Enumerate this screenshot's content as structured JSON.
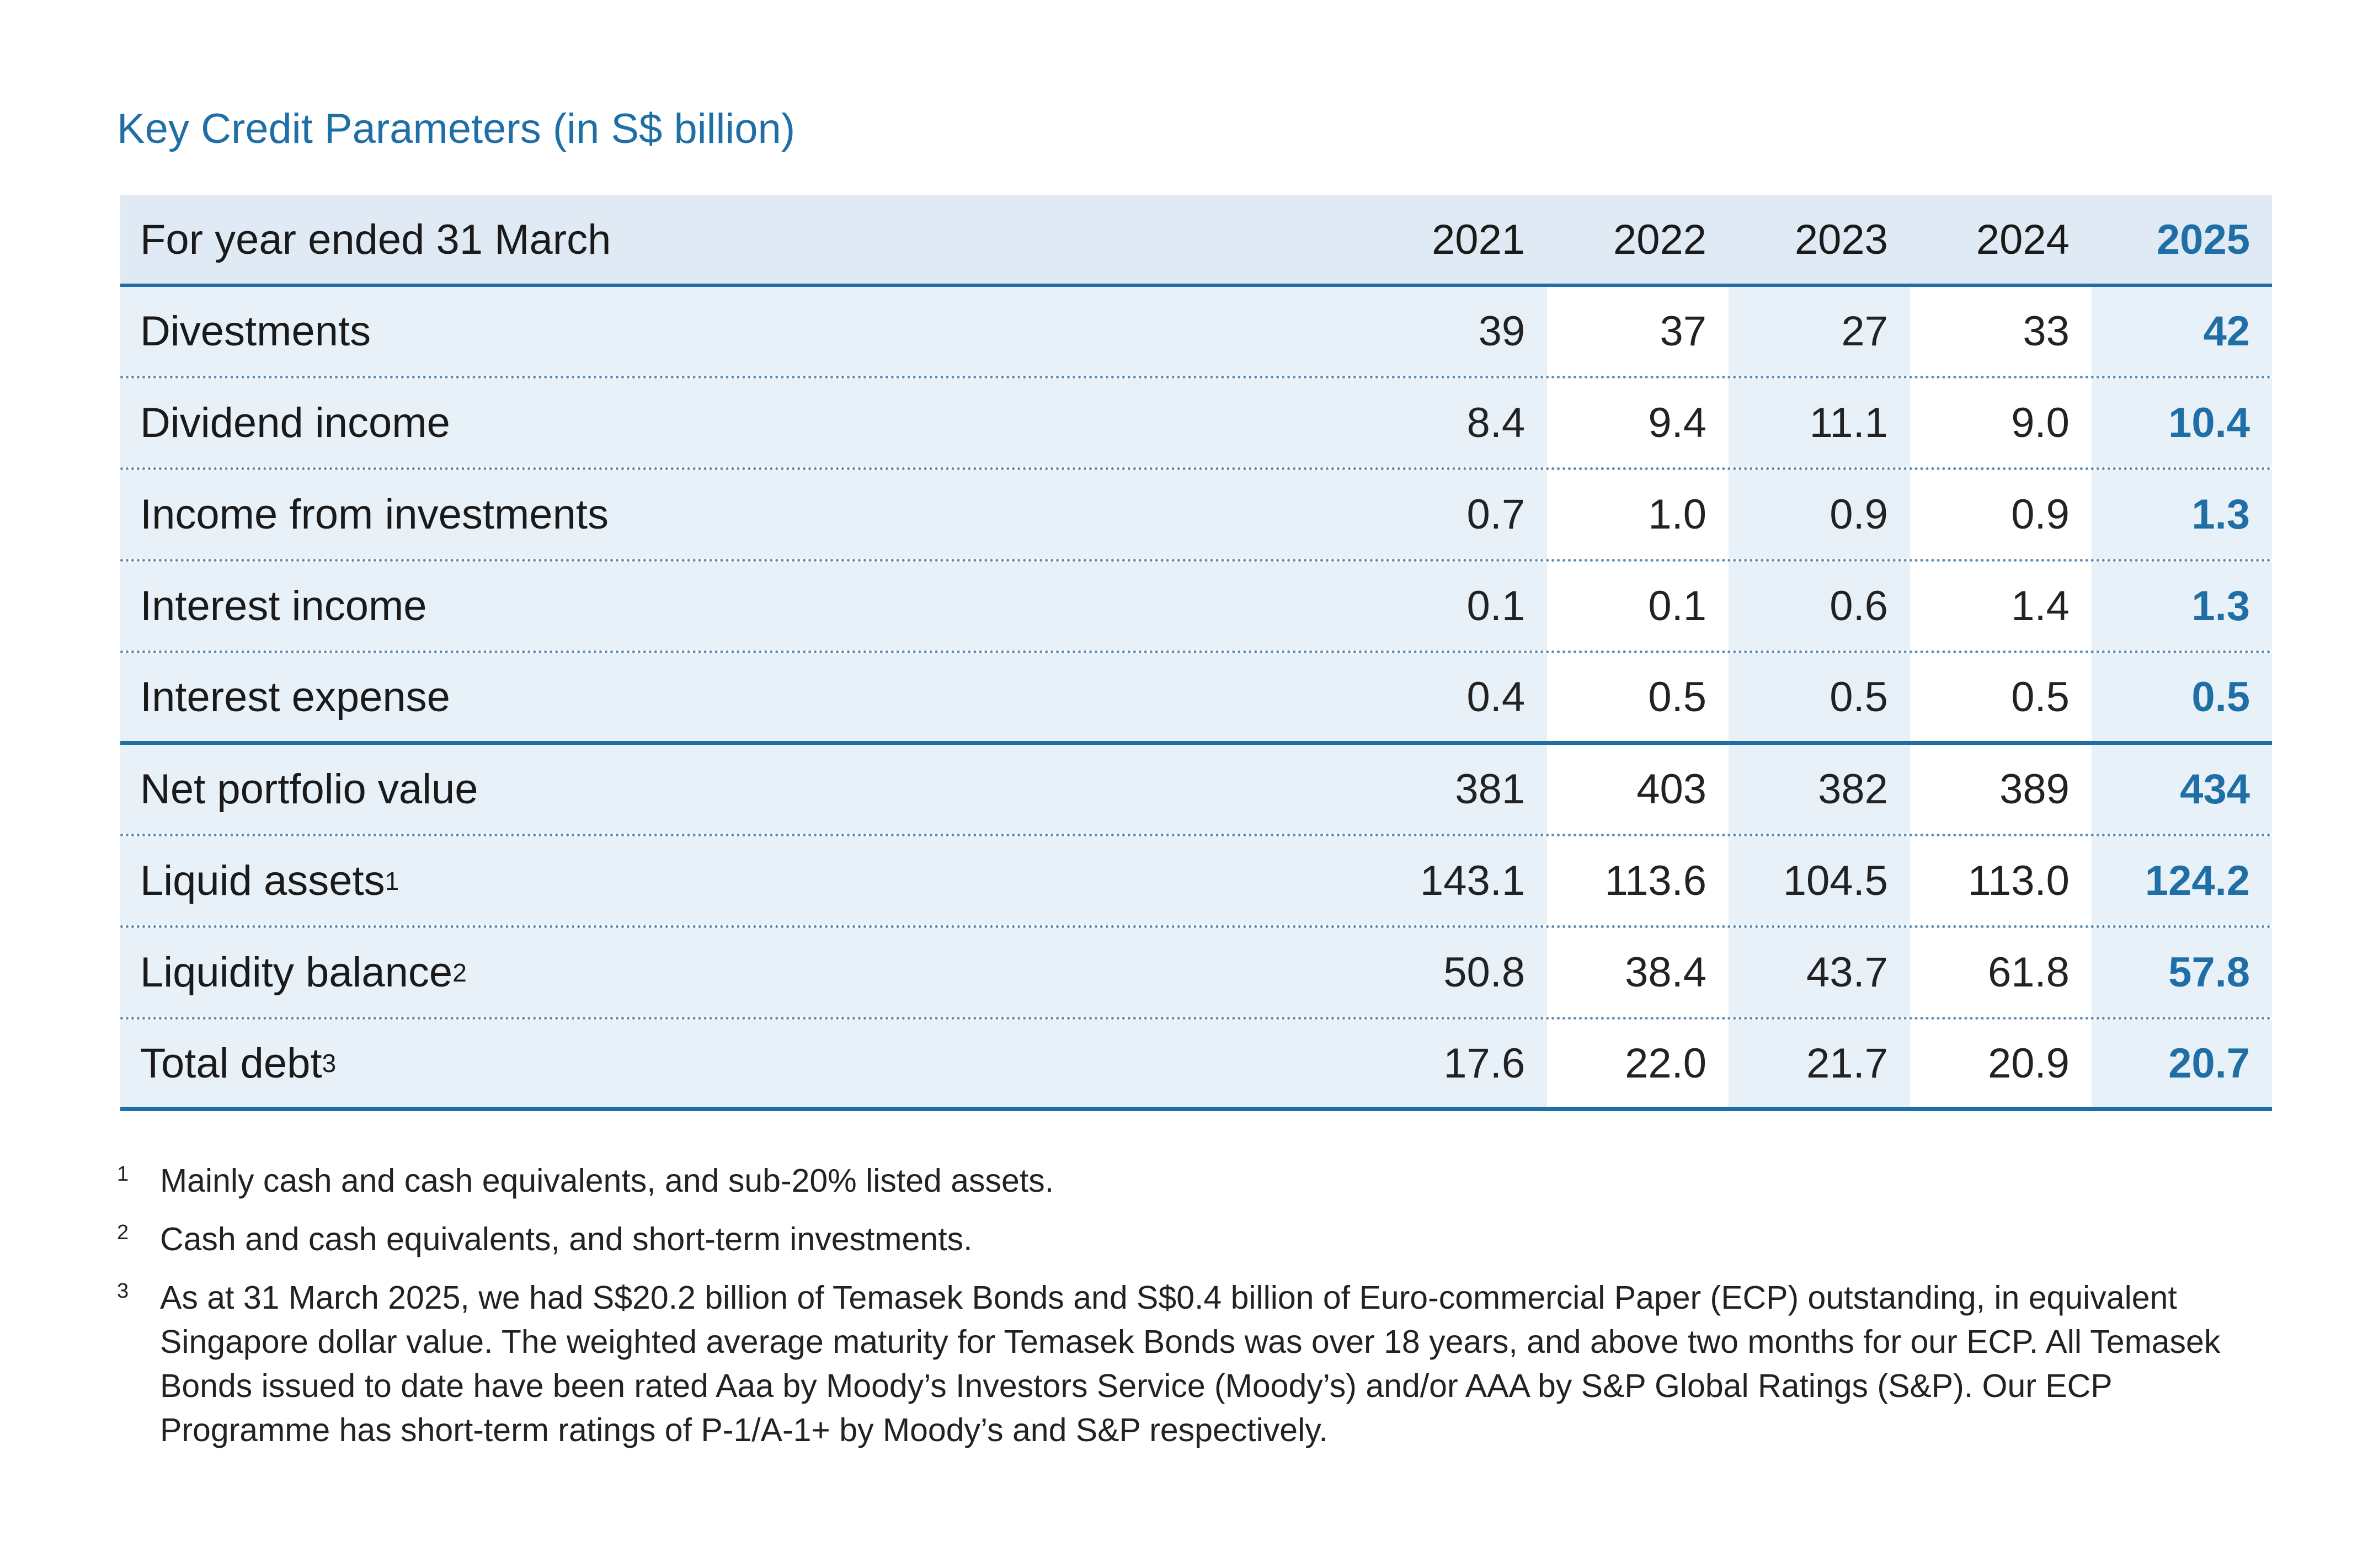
{
  "title": "Key Credit Parameters (in S$ billion)",
  "table": {
    "header": {
      "label": "For year ended 31 March",
      "years": [
        "2021",
        "2022",
        "2023",
        "2024",
        "2025"
      ]
    },
    "rows": [
      {
        "label": "Divestments",
        "sup": "",
        "values": [
          "39",
          "37",
          "27",
          "33",
          "42"
        ]
      },
      {
        "label": "Dividend income",
        "sup": "",
        "values": [
          "8.4",
          "9.4",
          "11.1",
          "9.0",
          "10.4"
        ]
      },
      {
        "label": "Income from investments",
        "sup": "",
        "values": [
          "0.7",
          "1.0",
          "0.9",
          "0.9",
          "1.3"
        ]
      },
      {
        "label": "Interest income",
        "sup": "",
        "values": [
          "0.1",
          "0.1",
          "0.6",
          "1.4",
          "1.3"
        ]
      },
      {
        "label": "Interest expense",
        "sup": "",
        "values": [
          "0.4",
          "0.5",
          "0.5",
          "0.5",
          "0.5"
        ]
      },
      {
        "label": "Net portfolio value",
        "sup": "",
        "values": [
          "381",
          "403",
          "382",
          "389",
          "434"
        ]
      },
      {
        "label": "Liquid assets",
        "sup": "1",
        "values": [
          "143.1",
          "113.6",
          "104.5",
          "113.0",
          "124.2"
        ]
      },
      {
        "label": "Liquidity balance",
        "sup": "2",
        "values": [
          "50.8",
          "38.4",
          "43.7",
          "61.8",
          "57.8"
        ]
      },
      {
        "label": "Total debt",
        "sup": "3",
        "values": [
          "17.6",
          "22.0",
          "21.7",
          "20.9",
          "20.7"
        ]
      }
    ]
  },
  "footnotes": [
    {
      "mark": "1",
      "text": "Mainly cash and cash equivalents, and sub-20% listed assets."
    },
    {
      "mark": "2",
      "text": "Cash and cash equivalents, and short-term investments."
    },
    {
      "mark": "3",
      "text": "As at 31 March 2025, we had S$20.2 billion of Temasek Bonds and S$0.4 billion of Euro-commercial Paper (ECP) outstanding, in equivalent Singapore dollar value. The weighted average maturity for Temasek Bonds was over 18 years, and above two months for our ECP. All Temasek Bonds issued to date have been rated Aaa by Moody’s Investors Service (Moody’s) and/or AAA by S&P Global Ratings (S&P). Our ECP Programme has short-term ratings of P-1/A-1+ by Moody’s and S&P respectively."
    }
  ],
  "colors": {
    "accent": "#1f6fa6",
    "row_shade": "#e8f1f8",
    "header_shade": "#dfeaf4"
  }
}
